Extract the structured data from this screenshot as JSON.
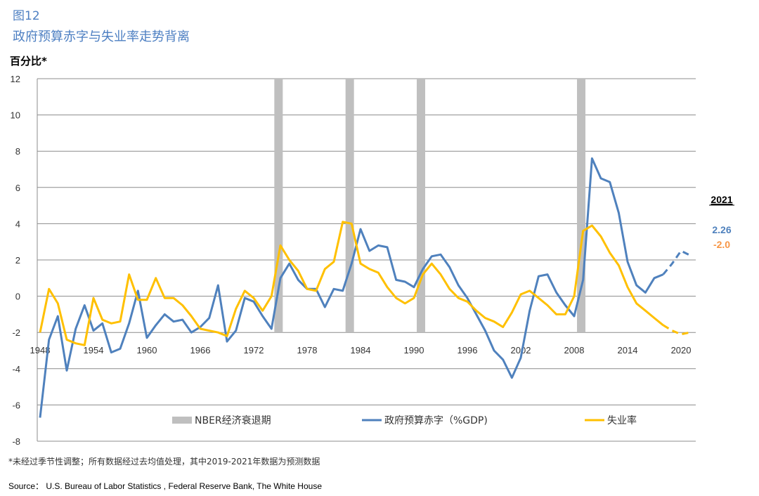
{
  "header": {
    "figure_number": "图12",
    "title": "政府预算赤字与失业率走势背离",
    "y_unit": "百分比*"
  },
  "annotation": {
    "year": "2021",
    "deficit_value": "2.26",
    "unemployment_value": "-2.0"
  },
  "footnote": "*未经过季节性调整；所有数据经过去均值处理，其中2019-2021年数据为预测数据",
  "source": "Source：  U.S. Bureau of Labor Statistics , Federal Reserve Bank, The White House",
  "colors": {
    "deficit": "#4f81bd",
    "unemployment": "#ffc000",
    "recession": "#bfbfbf",
    "title": "#4d7fc2"
  },
  "chart_data": {
    "type": "line",
    "ylim": [
      -8,
      12
    ],
    "yticks": [
      12,
      10,
      8,
      6,
      4,
      2,
      0,
      -2,
      -4,
      -6,
      -8
    ],
    "xlim": [
      1948,
      2021
    ],
    "xticks": [
      1948,
      1954,
      1960,
      1966,
      1972,
      1978,
      1984,
      1990,
      1996,
      2002,
      2008,
      2014,
      2020
    ],
    "grid": true,
    "legend_position": "bottom",
    "recession_periods": [
      {
        "name": "NBER经济衰退期",
        "start": 1974,
        "end": 1975
      },
      {
        "name": "NBER经济衰退期",
        "start": 1982,
        "end": 1983
      },
      {
        "name": "NBER经济衰退期",
        "start": 1990,
        "end": 1991
      },
      {
        "name": "NBER经济衰退期",
        "start": 2008,
        "end": 2009
      }
    ],
    "legend": [
      "NBER经济衰退期",
      "政府预算赤字（%GDP)",
      "失业率"
    ],
    "series": [
      {
        "name": "政府预算赤字（%GDP)",
        "forecast_from": 2018,
        "points": [
          [
            1948,
            -6.7
          ],
          [
            1949,
            -2.4
          ],
          [
            1950,
            -1.1
          ],
          [
            1951,
            -4.1
          ],
          [
            1952,
            -1.8
          ],
          [
            1953,
            -0.5
          ],
          [
            1954,
            -1.9
          ],
          [
            1955,
            -1.5
          ],
          [
            1956,
            -3.1
          ],
          [
            1957,
            -2.9
          ],
          [
            1958,
            -1.5
          ],
          [
            1959,
            0.3
          ],
          [
            1960,
            -2.3
          ],
          [
            1961,
            -1.6
          ],
          [
            1962,
            -1.0
          ],
          [
            1963,
            -1.4
          ],
          [
            1964,
            -1.3
          ],
          [
            1965,
            -2.0
          ],
          [
            1966,
            -1.7
          ],
          [
            1967,
            -1.2
          ],
          [
            1968,
            0.6
          ],
          [
            1969,
            -2.5
          ],
          [
            1970,
            -1.9
          ],
          [
            1971,
            -0.1
          ],
          [
            1972,
            -0.3
          ],
          [
            1973,
            -1.1
          ],
          [
            1974,
            -1.8
          ],
          [
            1975,
            1.0
          ],
          [
            1976,
            1.8
          ],
          [
            1977,
            0.9
          ],
          [
            1978,
            0.4
          ],
          [
            1979,
            0.4
          ],
          [
            1980,
            -0.6
          ],
          [
            1981,
            0.4
          ],
          [
            1982,
            0.3
          ],
          [
            1983,
            1.8
          ],
          [
            1984,
            3.7
          ],
          [
            1985,
            2.5
          ],
          [
            1986,
            2.8
          ],
          [
            1987,
            2.7
          ],
          [
            1988,
            0.9
          ],
          [
            1989,
            0.8
          ],
          [
            1990,
            0.5
          ],
          [
            1991,
            1.5
          ],
          [
            1992,
            2.2
          ],
          [
            1993,
            2.3
          ],
          [
            1994,
            1.6
          ],
          [
            1995,
            0.6
          ],
          [
            1996,
            -0.1
          ],
          [
            1997,
            -1.0
          ],
          [
            1998,
            -1.9
          ],
          [
            1999,
            -3.0
          ],
          [
            2000,
            -3.5
          ],
          [
            2001,
            -4.5
          ],
          [
            2002,
            -3.4
          ],
          [
            2003,
            -0.8
          ],
          [
            2004,
            1.1
          ],
          [
            2005,
            1.2
          ],
          [
            2006,
            0.2
          ],
          [
            2007,
            -0.5
          ],
          [
            2008,
            -1.1
          ],
          [
            2009,
            0.9
          ],
          [
            2010,
            7.6
          ],
          [
            2011,
            6.5
          ],
          [
            2012,
            6.3
          ],
          [
            2013,
            4.6
          ],
          [
            2014,
            1.9
          ],
          [
            2015,
            0.6
          ],
          [
            2016,
            0.2
          ],
          [
            2017,
            1.0
          ],
          [
            2018,
            1.2
          ],
          [
            2019,
            1.8
          ],
          [
            2020,
            2.5
          ],
          [
            2021,
            2.26
          ]
        ]
      },
      {
        "name": "失业率",
        "forecast_from": 2018,
        "points": [
          [
            1948,
            -2.0
          ],
          [
            1949,
            0.4
          ],
          [
            1950,
            -0.4
          ],
          [
            1951,
            -2.4
          ],
          [
            1952,
            -2.6
          ],
          [
            1953,
            -2.7
          ],
          [
            1954,
            -0.1
          ],
          [
            1955,
            -1.3
          ],
          [
            1956,
            -1.5
          ],
          [
            1957,
            -1.4
          ],
          [
            1958,
            1.2
          ],
          [
            1959,
            -0.2
          ],
          [
            1960,
            -0.2
          ],
          [
            1961,
            1.0
          ],
          [
            1962,
            -0.1
          ],
          [
            1963,
            -0.1
          ],
          [
            1964,
            -0.5
          ],
          [
            1965,
            -1.1
          ],
          [
            1966,
            -1.8
          ],
          [
            1967,
            -1.9
          ],
          [
            1968,
            -2.0
          ],
          [
            1969,
            -2.2
          ],
          [
            1970,
            -0.7
          ],
          [
            1971,
            0.3
          ],
          [
            1972,
            -0.1
          ],
          [
            1973,
            -0.8
          ],
          [
            1974,
            0.0
          ],
          [
            1975,
            2.8
          ],
          [
            1976,
            2.0
          ],
          [
            1977,
            1.4
          ],
          [
            1978,
            0.4
          ],
          [
            1979,
            0.3
          ],
          [
            1980,
            1.5
          ],
          [
            1981,
            1.9
          ],
          [
            1982,
            4.1
          ],
          [
            1983,
            4.0
          ],
          [
            1984,
            1.8
          ],
          [
            1985,
            1.5
          ],
          [
            1986,
            1.3
          ],
          [
            1987,
            0.5
          ],
          [
            1988,
            -0.1
          ],
          [
            1989,
            -0.4
          ],
          [
            1990,
            -0.1
          ],
          [
            1991,
            1.2
          ],
          [
            1992,
            1.8
          ],
          [
            1993,
            1.2
          ],
          [
            1994,
            0.4
          ],
          [
            1995,
            -0.1
          ],
          [
            1996,
            -0.3
          ],
          [
            1997,
            -0.8
          ],
          [
            1998,
            -1.2
          ],
          [
            1999,
            -1.4
          ],
          [
            2000,
            -1.7
          ],
          [
            2001,
            -0.9
          ],
          [
            2002,
            0.1
          ],
          [
            2003,
            0.3
          ],
          [
            2004,
            -0.1
          ],
          [
            2005,
            -0.5
          ],
          [
            2006,
            -1.0
          ],
          [
            2007,
            -1.0
          ],
          [
            2008,
            0.0
          ],
          [
            2009,
            3.6
          ],
          [
            2010,
            3.9
          ],
          [
            2011,
            3.3
          ],
          [
            2012,
            2.4
          ],
          [
            2013,
            1.7
          ],
          [
            2014,
            0.5
          ],
          [
            2015,
            -0.4
          ],
          [
            2016,
            -0.8
          ],
          [
            2017,
            -1.2
          ],
          [
            2018,
            -1.6
          ],
          [
            2019,
            -1.9
          ],
          [
            2020,
            -2.1
          ],
          [
            2021,
            -2.0
          ]
        ]
      }
    ]
  }
}
